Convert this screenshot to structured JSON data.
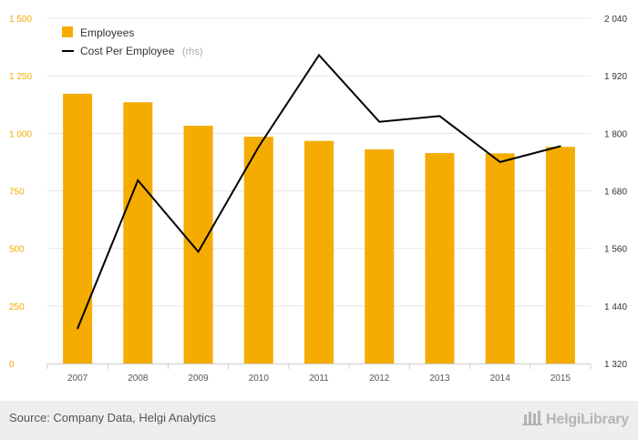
{
  "chart_data": {
    "type": "bar",
    "categories": [
      "2007",
      "2008",
      "2009",
      "2010",
      "2011",
      "2012",
      "2013",
      "2014",
      "2015"
    ],
    "series": [
      {
        "name": "Employees",
        "type": "bar",
        "axis": "left",
        "color": "#f5ac00",
        "values": [
          1172,
          1135,
          1033,
          985,
          967,
          930,
          914,
          913,
          941
        ]
      },
      {
        "name": "Cost Per Employee",
        "suffix": "(rhs)",
        "type": "line",
        "axis": "right",
        "color": "#000000",
        "values": [
          1393,
          1702,
          1553,
          1772,
          1963,
          1824,
          1836,
          1740,
          1773
        ]
      }
    ],
    "y_left": {
      "ylim": [
        0,
        1500
      ],
      "ticks": [
        0,
        250,
        500,
        750,
        1000,
        1250,
        1500
      ],
      "tick_labels": [
        "0",
        "250",
        "500",
        "750",
        "1 000",
        "1 250",
        "1 500"
      ],
      "color": "#f5a800"
    },
    "y_right": {
      "ylim": [
        1320,
        2040
      ],
      "ticks": [
        1320,
        1440,
        1560,
        1680,
        1800,
        1920,
        2040
      ],
      "tick_labels": [
        "1 320",
        "1 440",
        "1 560",
        "1 680",
        "1 800",
        "1 920",
        "2 040"
      ],
      "color": "#333333"
    },
    "grid": true,
    "legend_position": "top-left"
  },
  "source": "Source: Company Data, Helgi Analytics",
  "brand": "HelgiLibrary"
}
